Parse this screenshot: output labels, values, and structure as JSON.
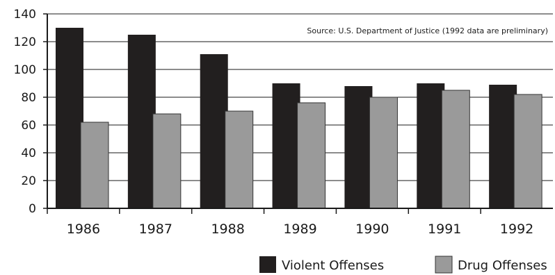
{
  "chart_data": {
    "type": "bar",
    "categories": [
      "1986",
      "1987",
      "1988",
      "1989",
      "1990",
      "1991",
      "1992"
    ],
    "series": [
      {
        "name": "Violent Offenses",
        "values": [
          130,
          125,
          111,
          90,
          88,
          90,
          89
        ],
        "color": "#221f1f"
      },
      {
        "name": "Drug Offenses",
        "values": [
          62,
          68,
          70,
          76,
          80,
          85,
          82
        ],
        "color": "#9a9a9a"
      }
    ],
    "yticks": [
      0,
      20,
      40,
      60,
      80,
      100,
      120,
      140
    ],
    "ylim": [
      0,
      140
    ],
    "grid": true,
    "legend_position": "bottom-right",
    "annotation": "Source: U.S. Department of Justice (1992 data are preliminary)"
  }
}
